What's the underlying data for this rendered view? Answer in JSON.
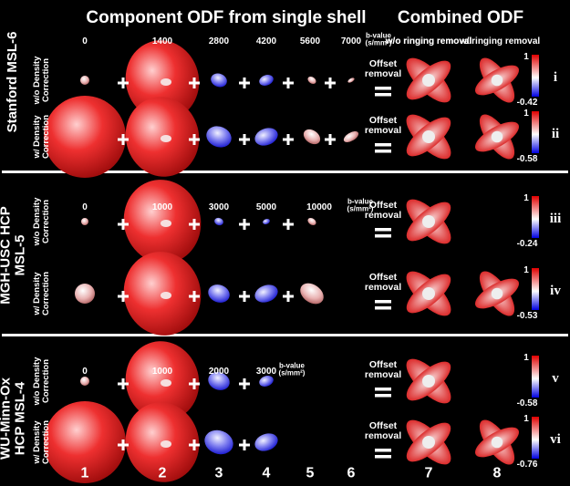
{
  "header": {
    "title": "Component ODF from single shell",
    "combined_title": "Combined ODF",
    "columns": [
      "w/o ringing removal",
      "w/ ringing removal"
    ]
  },
  "panels": [
    {
      "label": "Stanford MSL-6",
      "b_values": [
        "0",
        "1400",
        "2800",
        "4200",
        "5600",
        "7000"
      ],
      "b_unit": "b-value (s/mm²)",
      "rows": [
        {
          "label": "w/o Density Correction",
          "offset": "Offset removal",
          "scale_max": "1",
          "scale_min": "-0.42",
          "id": "i"
        },
        {
          "label": "w/ Density Correction",
          "offset": "Offset removal",
          "scale_max": "1",
          "scale_min": "-0.58",
          "id": "ii"
        }
      ]
    },
    {
      "label": "MGH-USC HCP MSL-5",
      "b_values": [
        "0",
        "1000",
        "3000",
        "5000",
        "10000"
      ],
      "b_unit": "b-value (s/mm²)",
      "rows": [
        {
          "label": "w/o Density Correction",
          "offset": "Offset removal",
          "scale_max": "1",
          "scale_min": "-0.24",
          "id": "iii"
        },
        {
          "label": "w/ Density Correction",
          "offset": "Offset removal",
          "scale_max": "1",
          "scale_min": "-0.53",
          "id": "iv"
        }
      ]
    },
    {
      "label": "WU-Minn-Ox HCP MSL-4",
      "b_values": [
        "0",
        "1000",
        "2000",
        "3000"
      ],
      "b_unit": "b-value (s/mm²)",
      "rows": [
        {
          "label": "w/o Density Correction",
          "offset": "Offset removal",
          "scale_max": "1",
          "scale_min": "-0.58",
          "id": "v"
        },
        {
          "label": "w/ Density Correction",
          "offset": "Offset removal",
          "scale_max": "1",
          "scale_min": "-0.76",
          "id": "vi"
        }
      ]
    }
  ],
  "column_numbers": [
    "1",
    "2",
    "3",
    "4",
    "5",
    "6",
    "7",
    "8"
  ]
}
